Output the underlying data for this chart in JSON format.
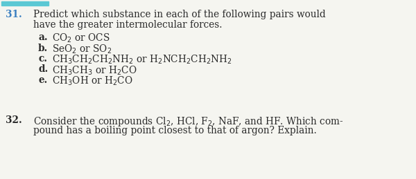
{
  "background_color": "#f5f5f0",
  "top_bar_color": "#5bc8d4",
  "number_color": "#3a7fc1",
  "text_color": "#2a2a2a",
  "fig_width": 6.0,
  "fig_height": 2.59,
  "dpi": 100,
  "q31_number": "31.",
  "q31_line1": "Predict which substance in each of the following pairs would",
  "q31_line2": "have the greater intermolecular forces.",
  "items": [
    {
      "label": "a.",
      "text": "CO$_2$ or OCS"
    },
    {
      "label": "b.",
      "text": "SeO$_2$ or SO$_2$"
    },
    {
      "label": "c.",
      "text": "CH$_3$CH$_2$CH$_2$NH$_2$ or H$_2$NCH$_2$CH$_2$NH$_2$"
    },
    {
      "label": "d.",
      "text": "CH$_3$CH$_3$ or H$_2$CO"
    },
    {
      "label": "e.",
      "text": "CH$_3$OH or H$_2$CO"
    }
  ],
  "q32_number": "32.",
  "q32_line1": "Consider the compounds Cl$_2$, HCl, F$_2$, NaF, and HF. Which com-",
  "q32_line2": "pound has a boiling point closest to that of argon? Explain.",
  "font_size": 9.8,
  "font_family": "DejaVu Serif"
}
